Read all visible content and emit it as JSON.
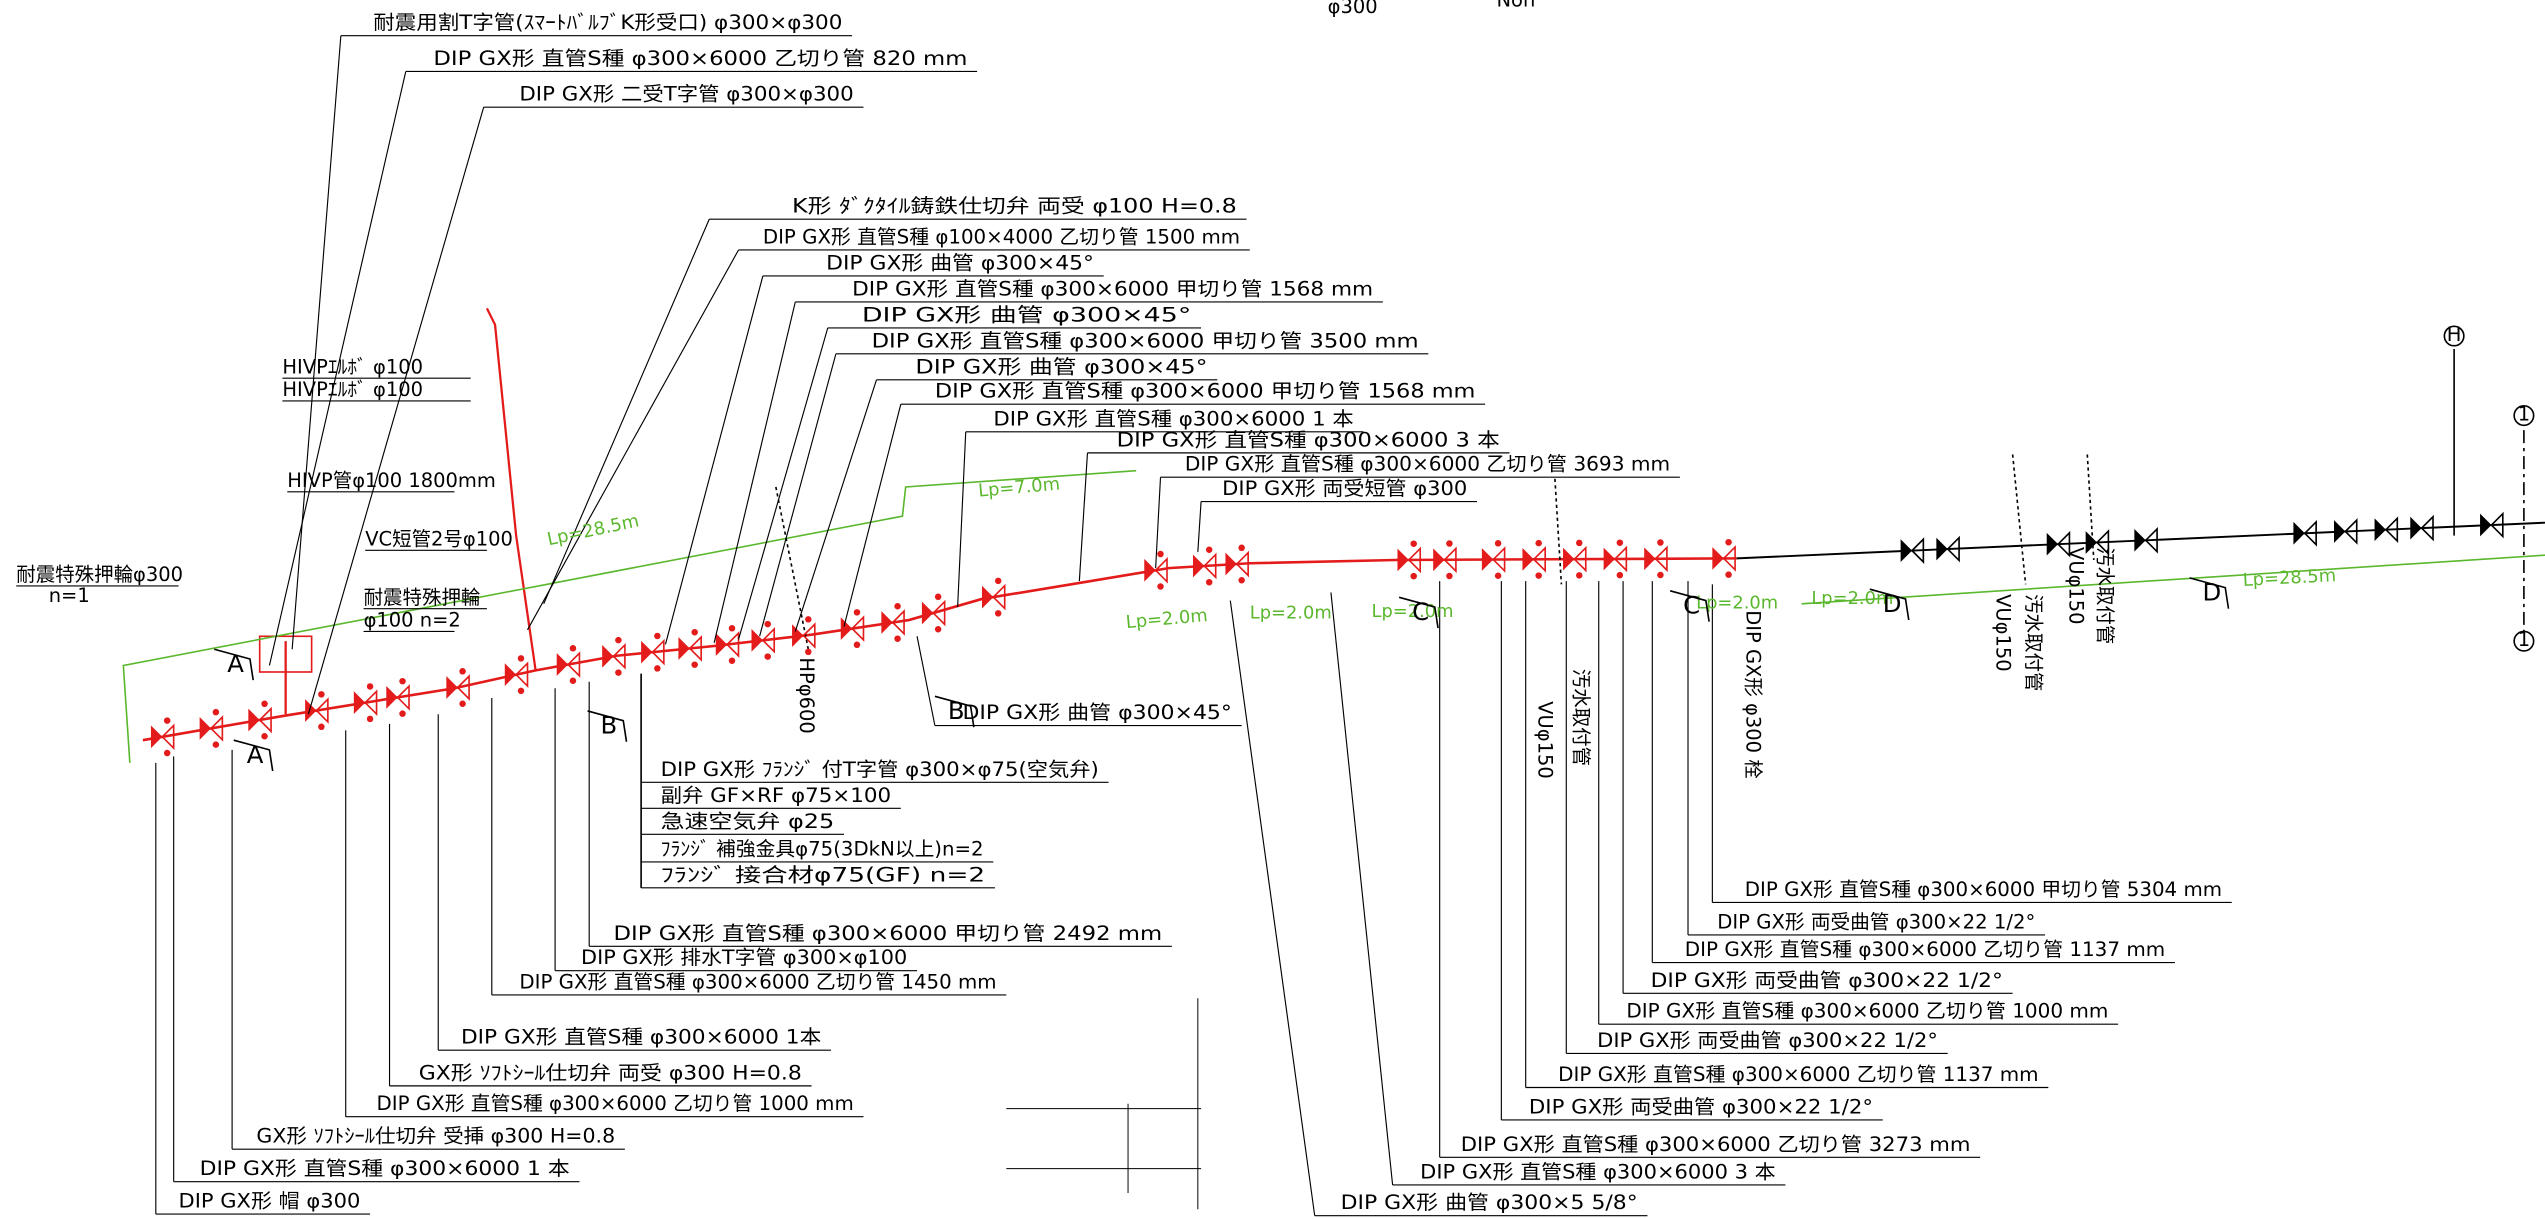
{
  "top_fragment": [
    "φ300",
    "Non"
  ],
  "callouts": [
    "耐震用割T字管(ｽﾏｰﾄﾊﾞﾙﾌﾞK形受口) φ300×φ300",
    "DIP GX形 直管S種 φ300×6000 乙切り管 820 mm",
    "DIP GX形 二受T字管 φ300×φ300",
    "K形 ﾀﾞｸﾀｲﾙ鋳鉄仕切弁 両受 φ100 H=0.8",
    "DIP GX形 直管S種 φ100×4000 乙切り管 1500 mm",
    "DIP GX形 曲管 φ300×45°",
    "DIP GX形 直管S種 φ300×6000 甲切り管 1568 mm",
    "DIP GX形 曲管 φ300×45°",
    "DIP GX形 直管S種 φ300×6000 甲切り管 3500 mm",
    "DIP GX形 曲管 φ300×45°",
    "DIP GX形 直管S種 φ300×6000 甲切り管 1568 mm",
    "DIP GX形 直管S種 φ300×6000 1 本",
    "DIP GX形 直管S種 φ300×6000 3 本",
    "DIP GX形 直管S種 φ300×6000 乙切り管 3693 mm",
    "DIP GX形 両受短管 φ300",
    "DIP GX形 ﾌﾗﾝｼﾞ 付T字管 φ300×φ75(空気弁)",
    "副弁 GF×RF φ75×100",
    "急速空気弁 φ25",
    "ﾌﾗﾝｼﾞ 補強金具φ75(3DkN以上)n=2",
    "ﾌﾗﾝｼﾞ 接合材φ75(GF) n=2",
    "DIP GX形 曲管 φ300×45°",
    "DIP GX形 直管S種 φ300×6000 甲切り管 2492 mm",
    "DIP GX形 排水T字管 φ300×φ100",
    "DIP GX形 直管S種 φ300×6000 乙切り管 1450 mm",
    "DIP GX形 直管S種 φ300×6000 1本",
    "GX形 ｿﾌﾄｼｰﾙ仕切弁 両受 φ300 H=0.8",
    "DIP GX形 直管S種 φ300×6000 乙切り管 1000 mm",
    "GX形 ｿﾌﾄｼｰﾙ仕切弁 受挿 φ300 H=0.8",
    "DIP GX形 直管S種 φ300×6000 1 本",
    "DIP GX形 帽 φ300",
    "DIP GX形 直管S種 φ300×6000 甲切り管 5304 mm",
    "DIP GX形 両受曲管 φ300×22 1/2°",
    "DIP GX形 直管S種 φ300×6000 乙切り管 1137 mm",
    "DIP GX形 両受曲管 φ300×22 1/2°",
    "DIP GX形 直管S種 φ300×6000 乙切り管 1000 mm",
    "DIP GX形 両受曲管 φ300×22 1/2°",
    "DIP GX形 直管S種 φ300×6000 乙切り管 1137 mm",
    "DIP GX形 両受曲管 φ300×22 1/2°",
    "DIP GX形 直管S種 φ300×6000 乙切り管 3273 mm",
    "DIP GX形 直管S種 φ300×6000 3 本",
    "DIP GX形 曲管 φ300×5 5/8°"
  ],
  "notes": [
    "HIVPｴﾙﾎﾞ φ100",
    "HIVPｴﾙﾎﾞ φ100",
    "HIVP管φ100 1800mm",
    "VC短管2号φ100",
    "耐震特殊押輪",
    "φ100 n=2",
    "耐震特殊押輪φ300",
    "n=1"
  ],
  "lp_labels": [
    "Lp=28.5m",
    "Lp=7.0m",
    "Lp=2.0m",
    "Lp=2.0m",
    "Lp=2.0m",
    "Lp=2.0m",
    "Lp=2.0m",
    "Lp=28.5m"
  ],
  "section_marks": [
    "A",
    "A",
    "B",
    "B",
    "C",
    "C",
    "D",
    "D"
  ],
  "vertical_labels": [
    "DIP GX形 φ300 栓",
    "VUφ150",
    "汚水取付管",
    "VUφ150",
    "汚水取付管",
    "VUφ150",
    "汚水取付管",
    "HPφ600"
  ],
  "symbols": [
    "H",
    "1",
    "1"
  ]
}
